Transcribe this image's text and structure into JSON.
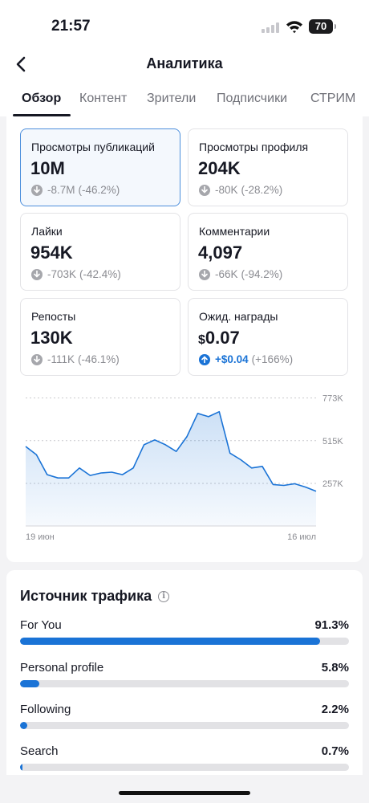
{
  "status": {
    "time": "21:57",
    "battery": "70"
  },
  "header": {
    "title": "Аналитика"
  },
  "tabs": [
    {
      "label": "Обзор",
      "active": true
    },
    {
      "label": "Контент",
      "active": false
    },
    {
      "label": "Зрители",
      "active": false
    },
    {
      "label": "Подписчики",
      "active": false
    },
    {
      "label": "СТРИМ",
      "active": false
    }
  ],
  "metrics": [
    {
      "label": "Просмотры публикаций",
      "value": "10M",
      "delta": "-8.7M",
      "pct": "(-46.2%)",
      "selected": true,
      "trend": "down"
    },
    {
      "label": "Просмотры профиля",
      "value": "204K",
      "delta": "-80K",
      "pct": "(-28.2%)",
      "selected": false,
      "trend": "down"
    },
    {
      "label": "Лайки",
      "value": "954K",
      "delta": "-703K",
      "pct": "(-42.4%)",
      "selected": false,
      "trend": "down"
    },
    {
      "label": "Комментарии",
      "value": "4,097",
      "delta": "-66K",
      "pct": "(-94.2%)",
      "selected": false,
      "trend": "down"
    },
    {
      "label": "Репосты",
      "value": "130K",
      "delta": "-111K",
      "pct": "(-46.1%)",
      "selected": false,
      "trend": "down"
    },
    {
      "label": "Ожид. награды",
      "currency": "$",
      "value": "0.07",
      "delta": "+$0.04",
      "pct": "(+166%)",
      "selected": false,
      "trend": "up"
    }
  ],
  "chart_data": {
    "type": "area",
    "series": [
      {
        "values": [
          480,
          430,
          310,
          290,
          290,
          350,
          305,
          320,
          325,
          310,
          350,
          490,
          520,
          490,
          450,
          540,
          680,
          660,
          690,
          440,
          400,
          350,
          360,
          250,
          245,
          255,
          235,
          210
        ]
      }
    ],
    "ylim": [
      0,
      800
    ],
    "yticks": [
      257,
      515,
      773
    ],
    "ytick_labels": [
      "257K",
      "515K",
      "773K"
    ],
    "x_labels": [
      "19 июн",
      "16 июл"
    ],
    "grid": true,
    "color": "#1a73d6"
  },
  "traffic": {
    "title": "Источник трафика",
    "sources": [
      {
        "name": "For You",
        "pct_label": "91.3%",
        "value": 91.3
      },
      {
        "name": "Personal profile",
        "pct_label": "5.8%",
        "value": 5.8
      },
      {
        "name": "Following",
        "pct_label": "2.2%",
        "value": 2.2
      },
      {
        "name": "Search",
        "pct_label": "0.7%",
        "value": 0.7
      }
    ]
  }
}
